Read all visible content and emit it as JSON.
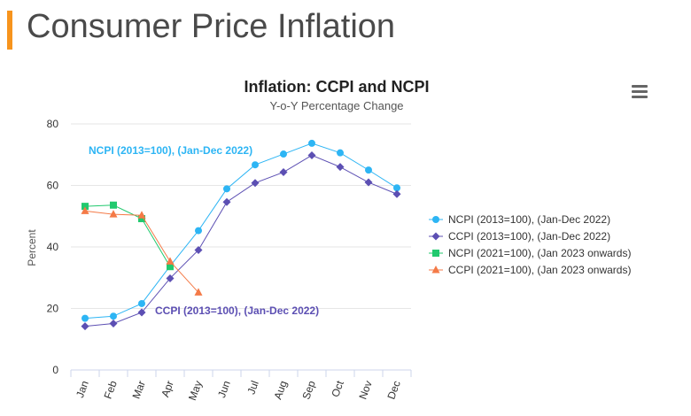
{
  "page": {
    "title": "Consumer Price Inflation",
    "accent_color": "#f7941d"
  },
  "toolbar": {
    "menu_icon": "hamburger-menu-icon"
  },
  "chart_data": {
    "type": "line",
    "title": "Inflation: CCPI and NCPI",
    "subtitle": "Y-o-Y Percentage Change",
    "xlabel": "",
    "ylabel": "Percent",
    "ylim": [
      0,
      80
    ],
    "yticks": [
      0,
      20,
      40,
      60,
      80
    ],
    "grid": true,
    "legend_position": "right",
    "categories": [
      "Jan",
      "Feb",
      "Mar",
      "Apr",
      "May",
      "Jun",
      "Jul",
      "Aug",
      "Sep",
      "Oct",
      "Nov",
      "Dec"
    ],
    "series": [
      {
        "name": "NCPI (2013=100), (Jan-Dec 2022)",
        "color": "#2db5f4",
        "marker": "circle",
        "values": [
          16.8,
          17.5,
          21.6,
          33.8,
          45.3,
          58.9,
          66.7,
          70.2,
          73.7,
          70.6,
          65.0,
          59.2
        ]
      },
      {
        "name": "CCPI (2013=100), (Jan-Dec 2022)",
        "color": "#5c4fb3",
        "marker": "diamond",
        "values": [
          14.2,
          15.1,
          18.7,
          29.8,
          39.0,
          54.6,
          60.8,
          64.3,
          69.8,
          66.0,
          61.0,
          57.2
        ]
      },
      {
        "name": "NCPI (2021=100), (Jan 2023 onwards)",
        "color": "#21c96e",
        "marker": "square",
        "values": [
          53.2,
          53.6,
          49.2,
          33.6,
          null,
          null,
          null,
          null,
          null,
          null,
          null,
          null
        ]
      },
      {
        "name": "CCPI (2021=100), (Jan 2023 onwards)",
        "color": "#f47a47",
        "marker": "triangle",
        "values": [
          51.7,
          50.6,
          50.3,
          35.3,
          25.2,
          null,
          null,
          null,
          null,
          null,
          null,
          null
        ]
      }
    ],
    "annotations": [
      {
        "text": "NCPI (2013=100), (Jan-Dec 2022)",
        "color": "#2db5f4"
      },
      {
        "text": "CCPI (2013=100), (Jan-Dec 2022)",
        "color": "#5c4fb3"
      }
    ]
  }
}
